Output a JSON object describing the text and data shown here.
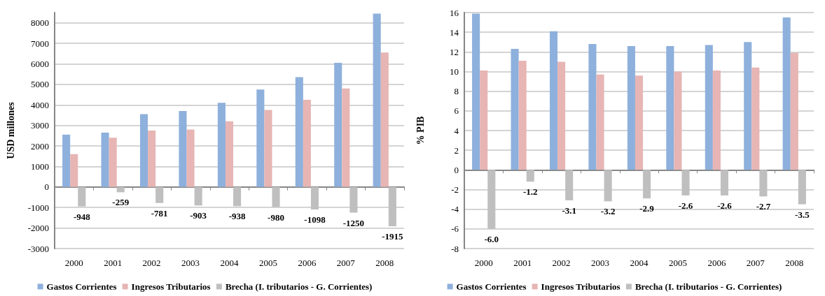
{
  "chart_data": [
    {
      "type": "bar",
      "ylabel": "USD millones",
      "categories": [
        "2000",
        "2001",
        "2002",
        "2003",
        "2004",
        "2005",
        "2006",
        "2007",
        "2008"
      ],
      "series": [
        {
          "name": "Gastos Corrientes",
          "color": "#8eb0dc",
          "values": [
            2550,
            2650,
            3550,
            3700,
            4100,
            4750,
            5350,
            6050,
            8450
          ]
        },
        {
          "name": "Ingresos Tributarios",
          "color": "#e6b5b4",
          "values": [
            1600,
            2400,
            2750,
            2800,
            3200,
            3750,
            4250,
            4800,
            6550
          ]
        },
        {
          "name": "Brecha (I. tributarios - G. Corrientes)",
          "color": "#bfbfbf",
          "values": [
            -948,
            -259,
            -781,
            -903,
            -938,
            -980,
            -1098,
            -1250,
            -1915
          ],
          "value_labels": [
            "-948",
            "-259",
            "-781",
            "-903",
            "-938",
            "-980",
            "-1098",
            "-1250",
            "-1915"
          ]
        }
      ],
      "ylim": [
        -3000,
        8500
      ],
      "yticks": [
        -3000,
        -2000,
        -1000,
        0,
        1000,
        2000,
        3000,
        4000,
        5000,
        6000,
        7000,
        8000
      ],
      "grid": "y",
      "legend": "bottom"
    },
    {
      "type": "bar",
      "ylabel": "% PIB",
      "categories": [
        "2000",
        "2001",
        "2002",
        "2003",
        "2004",
        "2005",
        "2006",
        "2007",
        "2008"
      ],
      "series": [
        {
          "name": "Gastos Corrientes",
          "color": "#8eb0dc",
          "values": [
            15.9,
            12.3,
            14.1,
            12.8,
            12.6,
            12.6,
            12.7,
            13.0,
            15.5
          ]
        },
        {
          "name": "Ingresos Tributarios",
          "color": "#e6b5b4",
          "values": [
            10.1,
            11.1,
            11.0,
            9.7,
            9.6,
            10.0,
            10.1,
            10.4,
            11.9
          ]
        },
        {
          "name": "Brecha (I. tributarios - G. Corrientes)",
          "color": "#bfbfbf",
          "values": [
            -6.0,
            -1.2,
            -3.1,
            -3.2,
            -2.9,
            -2.6,
            -2.6,
            -2.7,
            -3.5
          ],
          "value_labels": [
            "-6.0",
            "-1.2",
            "-3.1",
            "-3.2",
            "-2.9",
            "-2.6",
            "-2.6",
            "-2.7",
            "-3.5"
          ]
        }
      ],
      "ylim": [
        -8,
        16
      ],
      "yticks": [
        -8,
        -6,
        -4,
        -2,
        0,
        2,
        4,
        6,
        8,
        10,
        12,
        14,
        16
      ],
      "grid": "y",
      "legend": "bottom"
    }
  ]
}
